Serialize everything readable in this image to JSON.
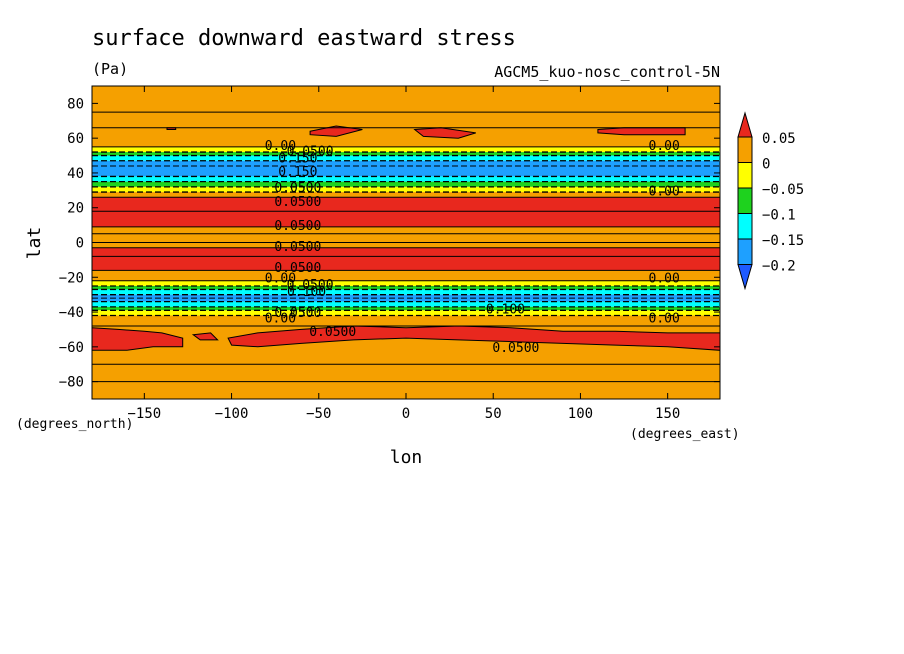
{
  "chart_data": {
    "type": "heatmap",
    "title": "surface downward eastward stress",
    "units": "(Pa)",
    "experiment": "AGCM5_kuo-nosc_control-5N",
    "xlabel": "lon",
    "ylabel": "lat",
    "x_unit": "(degrees_east)",
    "y_unit": "(degrees_north)",
    "xlim": [
      -180,
      180
    ],
    "ylim": [
      -90,
      90
    ],
    "xticks": [
      -150,
      -100,
      -50,
      0,
      50,
      100,
      150
    ],
    "yticks": [
      80,
      60,
      40,
      20,
      0,
      -20,
      -40,
      -60,
      -80
    ],
    "colorbar": {
      "levels": [
        0.05,
        0,
        -0.05,
        -0.1,
        -0.15,
        -0.2
      ],
      "level_labels": [
        "0.05",
        "0",
        "−0.05",
        "−0.1",
        "−0.15",
        "−0.2"
      ],
      "colors": [
        "#e8281e",
        "#f5a000",
        "#ffff00",
        "#1ed21e",
        "#00ffff",
        "#1ea0ff",
        "#1e5aff"
      ]
    },
    "bands": [
      {
        "lat_min": 55,
        "lat_max": 90,
        "class": 1
      },
      {
        "lat_min": 52,
        "lat_max": 55,
        "class": 2
      },
      {
        "lat_min": 50,
        "lat_max": 52,
        "class": 3
      },
      {
        "lat_min": 47,
        "lat_max": 50,
        "class": 4
      },
      {
        "lat_min": 38,
        "lat_max": 47,
        "class": 5
      },
      {
        "lat_min": 35,
        "lat_max": 38,
        "class": 4
      },
      {
        "lat_min": 32,
        "lat_max": 35,
        "class": 3
      },
      {
        "lat_min": 29,
        "lat_max": 32,
        "class": 2
      },
      {
        "lat_min": 26,
        "lat_max": 29,
        "class": 1
      },
      {
        "lat_min": 9,
        "lat_max": 26,
        "class": 0
      },
      {
        "lat_min": 5,
        "lat_max": 9,
        "class": 1
      },
      {
        "lat_min": -3,
        "lat_max": 5,
        "class": 1
      },
      {
        "lat_min": -16,
        "lat_max": -3,
        "class": 0
      },
      {
        "lat_min": -22,
        "lat_max": -16,
        "class": 1
      },
      {
        "lat_min": -25,
        "lat_max": -22,
        "class": 2
      },
      {
        "lat_min": -27,
        "lat_max": -25,
        "class": 3
      },
      {
        "lat_min": -30,
        "lat_max": -27,
        "class": 4
      },
      {
        "lat_min": -34,
        "lat_max": -30,
        "class": 5
      },
      {
        "lat_min": -37,
        "lat_max": -34,
        "class": 4
      },
      {
        "lat_min": -39,
        "lat_max": -37,
        "class": 3
      },
      {
        "lat_min": -42,
        "lat_max": -39,
        "class": 2
      },
      {
        "lat_min": -48,
        "lat_max": -42,
        "class": 1
      },
      {
        "lat_min": -90,
        "lat_max": -48,
        "class": 1
      }
    ],
    "patches": [
      {
        "class": 0,
        "points": [
          [
            -180,
            -49
          ],
          [
            -165,
            -50
          ],
          [
            -150,
            -51
          ],
          [
            -140,
            -52
          ],
          [
            -128,
            -55
          ],
          [
            -128,
            -60
          ],
          [
            -145,
            -60
          ],
          [
            -160,
            -62
          ],
          [
            -180,
            -62
          ]
        ]
      },
      {
        "class": 0,
        "points": [
          [
            -85,
            -52
          ],
          [
            -60,
            -50
          ],
          [
            -30,
            -48
          ],
          [
            0,
            -49
          ],
          [
            30,
            -48
          ],
          [
            60,
            -49
          ],
          [
            90,
            -51
          ],
          [
            120,
            -51
          ],
          [
            150,
            -52
          ],
          [
            180,
            -52
          ],
          [
            180,
            -62
          ],
          [
            150,
            -60
          ],
          [
            120,
            -59
          ],
          [
            90,
            -58
          ],
          [
            60,
            -57
          ],
          [
            30,
            -56
          ],
          [
            0,
            -55
          ],
          [
            -30,
            -56
          ],
          [
            -60,
            -58
          ],
          [
            -85,
            -60
          ],
          [
            -100,
            -59
          ],
          [
            -102,
            -55
          ]
        ]
      },
      {
        "class": 0,
        "points": [
          [
            -122,
            -53
          ],
          [
            -112,
            -52
          ],
          [
            -108,
            -56
          ],
          [
            -118,
            -56
          ]
        ]
      },
      {
        "class": 0,
        "points": [
          [
            -55,
            64
          ],
          [
            -40,
            67
          ],
          [
            -25,
            65
          ],
          [
            -40,
            61
          ],
          [
            -55,
            62
          ]
        ]
      },
      {
        "class": 0,
        "points": [
          [
            5,
            65
          ],
          [
            20,
            66
          ],
          [
            40,
            63
          ],
          [
            30,
            60
          ],
          [
            10,
            61
          ]
        ]
      },
      {
        "class": 0,
        "points": [
          [
            110,
            65
          ],
          [
            125,
            66
          ],
          [
            160,
            66
          ],
          [
            160,
            62
          ],
          [
            125,
            62
          ],
          [
            110,
            63
          ]
        ]
      },
      {
        "class": 0,
        "points": [
          [
            -137,
            66
          ],
          [
            -132,
            66
          ],
          [
            -132,
            65
          ],
          [
            -137,
            65
          ]
        ]
      }
    ],
    "contour_labels": [
      {
        "text": "0.00",
        "lon": -72,
        "lat": 56
      },
      {
        "text": "0.0500",
        "lon": -55,
        "lat": 53
      },
      {
        "text": "0.150",
        "lon": -62,
        "lat": 49
      },
      {
        "text": "0.150",
        "lon": -62,
        "lat": 41
      },
      {
        "text": "0.0500",
        "lon": -62,
        "lat": 32
      },
      {
        "text": "0.0500",
        "lon": -62,
        "lat": 24
      },
      {
        "text": "0.0500",
        "lon": -62,
        "lat": 10
      },
      {
        "text": "0.0500",
        "lon": -62,
        "lat": -2
      },
      {
        "text": "0.0500",
        "lon": -62,
        "lat": -14
      },
      {
        "text": "0.00",
        "lon": -72,
        "lat": -20
      },
      {
        "text": "0.0500",
        "lon": -55,
        "lat": -24
      },
      {
        "text": "0.100",
        "lon": -57,
        "lat": -28
      },
      {
        "text": "0.0500",
        "lon": -62,
        "lat": -40
      },
      {
        "text": "0.00",
        "lon": -72,
        "lat": -43
      },
      {
        "text": "0.0500",
        "lon": -42,
        "lat": -51
      },
      {
        "text": "0.0500",
        "lon": 63,
        "lat": -60
      },
      {
        "text": "0.100",
        "lon": 57,
        "lat": -38
      },
      {
        "text": "0.00",
        "lon": 148,
        "lat": 56
      },
      {
        "text": "0.00",
        "lon": 148,
        "lat": 30
      },
      {
        "text": "0.00",
        "lon": 148,
        "lat": -20
      },
      {
        "text": "0.00",
        "lon": 148,
        "lat": -43
      }
    ]
  }
}
